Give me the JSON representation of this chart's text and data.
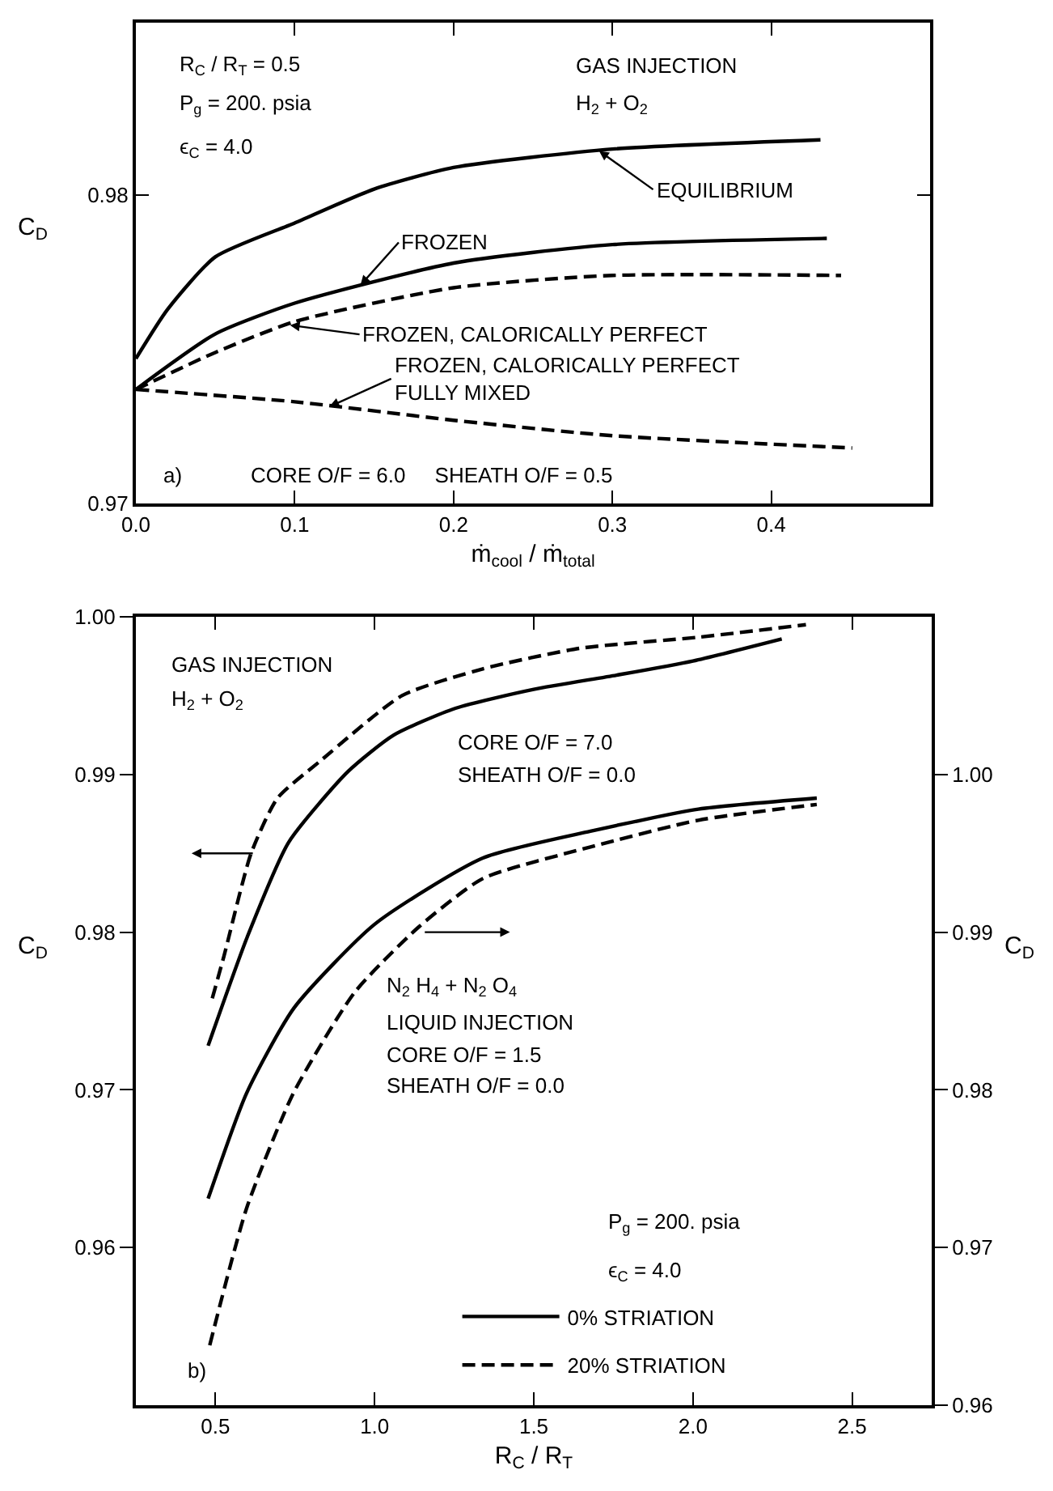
{
  "chart_data": [
    {
      "type": "line",
      "xlabel": "ṁ$_{cool}$ / ṁ$_{total}$",
      "ylabel": "C$_{D}$",
      "xlim": [
        0,
        0.5
      ],
      "ylim": [
        0.97,
        0.9856
      ],
      "xticks": [
        {
          "value": 0,
          "label": "0.0"
        },
        0.1,
        0.2,
        0.3,
        0.4
      ],
      "yticks": [
        0.97,
        0.98
      ],
      "grid": false,
      "legend": false,
      "marker": "none",
      "series": [
        {
          "color": "#000000",
          "line_style": "solid",
          "x": [
            0,
            0.02,
            0.05,
            0.1,
            0.15,
            0.2,
            0.3,
            0.431
          ],
          "values": [
            0.9747,
            0.9763,
            0.978,
            0.9791,
            0.9802,
            0.9809,
            0.9815,
            0.9818
          ]
        },
        {
          "color": "#000000",
          "line_style": "solid",
          "x": [
            0,
            0.05,
            0.1,
            0.2,
            0.3,
            0.435
          ],
          "values": [
            0.9737,
            0.9755,
            0.9765,
            0.9778,
            0.9784,
            0.9786
          ]
        },
        {
          "color": "#000000",
          "line_style": "dashed",
          "x": [
            0,
            0.05,
            0.1,
            0.2,
            0.3,
            0.444
          ],
          "values": [
            0.9737,
            0.9749,
            0.9759,
            0.977,
            0.9774,
            0.9774
          ]
        },
        {
          "color": "#000000",
          "line_style": "dashed",
          "x": [
            0,
            0.1,
            0.2,
            0.3,
            0.451
          ],
          "values": [
            0.9737,
            0.9733,
            0.9727,
            0.9722,
            0.9718
          ]
        }
      ],
      "annotations": [
        "R$_{C}$ / R$_{T}$ = 0.5",
        "P$_{g}$ = 200. psia",
        "ϵ$_{C}$ = 4.0",
        "GAS INJECTION",
        "H$_{2}$ + O$_{2}$",
        {
          "text": "EQUILIBRIUM",
          "x": 0.29,
          "y": 0.9815
        },
        {
          "text": "FROZEN",
          "x": 0.14,
          "y": 0.977
        },
        {
          "text": "FROZEN, CALORICALLY PERFECT",
          "x": 0.095,
          "y": 0.9758
        },
        {
          "text": "FROZEN, CALORICALLY PERFECT\nFULLY MIXED",
          "x": 0.12,
          "y": 0.9731
        },
        "a)",
        "CORE O/F = 6.0     SHEATH O/F = 0.5"
      ]
    },
    {
      "type": "line",
      "xlabel": "R$_{C}$ / R$_{T}$",
      "ylabel": "C$_{D}$",
      "y2label": "C$_{D}$",
      "xlim": [
        0.25,
        2.75
      ],
      "ylim": [
        0.95,
        1.0
      ],
      "y2lim": [
        0.96,
        1.01
      ],
      "xticks": [
        0.5,
        {
          "value": 1,
          "label": "1.0"
        },
        1.5,
        {
          "value": 2,
          "label": "2.0"
        },
        2.5
      ],
      "yticks": [
        0.96,
        0.97,
        0.98,
        0.99,
        {
          "value": 1,
          "label": "1.00"
        }
      ],
      "y2ticks": [
        0.96,
        0.97,
        0.98,
        0.99,
        {
          "value": 1,
          "label": "1.00"
        }
      ],
      "grid": false,
      "legend": "bottom right",
      "marker": "none",
      "series": [
        {
          "name": "0% STRIATION",
          "color": "#000000",
          "line_style": "solid",
          "x": [
            0.477,
            0.6,
            0.73,
            0.917,
            1.06,
            1.254,
            1.5,
            1.76,
            2.0,
            2.279
          ],
          "values": [
            0.9728,
            0.9797,
            0.9857,
            0.9902,
            0.9925,
            0.9942,
            0.9954,
            0.9963,
            0.9972,
            0.9986
          ]
        },
        {
          "name": "20% STRIATION",
          "color": "#000000",
          "line_style": "dashed",
          "x": [
            0.49,
            0.527,
            0.612,
            0.695,
            0.832,
            1.086,
            1.34,
            1.644,
            2.015,
            2.355
          ],
          "values": [
            0.9758,
            0.9785,
            0.985,
            0.9885,
            0.9909,
            0.995,
            0.9967,
            0.998,
            0.9987,
            0.9995
          ]
        },
        {
          "axis": "y2",
          "color": "#000000",
          "line_style": "solid",
          "x": [
            0.477,
            0.598,
            0.747,
            1.0,
            1.34,
            1.678,
            2.017,
            2.389
          ],
          "values": [
            0.9731,
            0.9798,
            0.9852,
            0.9905,
            0.9947,
            0.9964,
            0.9978,
            0.9985
          ]
        },
        {
          "axis": "y2",
          "color": "#000000",
          "line_style": "dashed",
          "x": [
            0.482,
            0.598,
            0.745,
            0.938,
            1.137,
            1.34,
            1.678,
            2.017,
            2.389
          ],
          "values": [
            0.9638,
            0.9725,
            0.9798,
            0.9862,
            0.9903,
            0.9934,
            0.9954,
            0.9971,
            0.9981
          ]
        }
      ],
      "annotations": [
        "GAS INJECTION",
        "H$_{2}$ + O$_{2}$",
        "CORE O/F = 7.0",
        "SHEATH O/F = 0.0",
        "N$_{2}$ H$_{4}$ + N$_{2}$ O$_{4}$",
        "LIQUID INJECTION",
        "CORE O/F = 1.5",
        "SHEATH O/F = 0.0",
        "P$_{g}$ = 200. psia",
        "ϵ$_{C}$ = 4.0",
        "b)"
      ]
    }
  ]
}
